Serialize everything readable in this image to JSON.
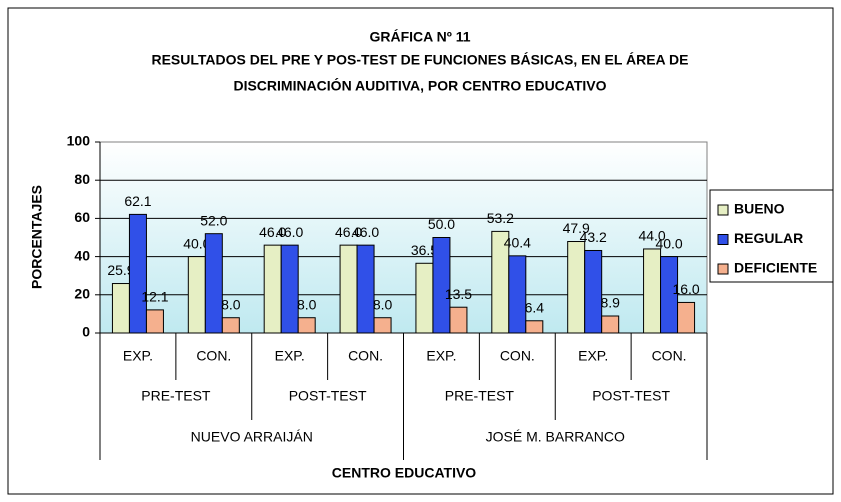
{
  "chart_data": {
    "type": "bar",
    "title": "GRÁFICA Nº 11",
    "subtitle": [
      "RESULTADOS DEL PRE Y POS-TEST DE FUNCIONES BÁSICAS, EN EL ÁREA DE",
      "DISCRIMINACIÓN AUDITIVA, POR CENTRO EDUCATIVO"
    ],
    "ylabel": "PORCENTAJES",
    "xlabel": "CENTRO EDUCATIVO",
    "categories": [
      "EXP.",
      "CON.",
      "EXP.",
      "CON.",
      "EXP.",
      "CON.",
      "EXP.",
      "CON."
    ],
    "categories_level2": [
      "PRE-TEST",
      "POST-TEST",
      "PRE-TEST",
      "POST-TEST"
    ],
    "categories_level3": [
      "NUEVO ARRAIJÁN",
      "JOSÉ M. BARRANCO"
    ],
    "series": [
      {
        "name": "BUENO",
        "color": "#e6efc4",
        "values": [
          25.9,
          40.0,
          46.0,
          46.0,
          36.5,
          53.2,
          47.9,
          44.0
        ],
        "value_labels": [
          "25.9",
          "40.0",
          "46.0",
          "46.0",
          "36.5",
          "53.2",
          "47.9",
          "44.0"
        ]
      },
      {
        "name": "REGULAR",
        "color": "#3050e8",
        "values": [
          62.1,
          52.0,
          46.0,
          46.0,
          50.0,
          40.4,
          43.2,
          40.0
        ],
        "value_labels": [
          "62.1",
          "52.0",
          "46.0",
          "46.0",
          "50.0",
          "40.4",
          "43.2",
          "40.0"
        ]
      },
      {
        "name": "DEFICIENTE",
        "color": "#f5b08e",
        "values": [
          12.1,
          8.0,
          8.0,
          8.0,
          13.5,
          6.4,
          8.9,
          16.0
        ],
        "value_labels": [
          "12.1",
          "8.0",
          "8.0",
          "8.0",
          "13.5",
          "6.4",
          "8.9",
          "16.0"
        ]
      }
    ],
    "ylim": [
      0,
      100
    ],
    "yticks": [
      0,
      20,
      40,
      60,
      80,
      100
    ],
    "grid": true,
    "legend": "right"
  }
}
